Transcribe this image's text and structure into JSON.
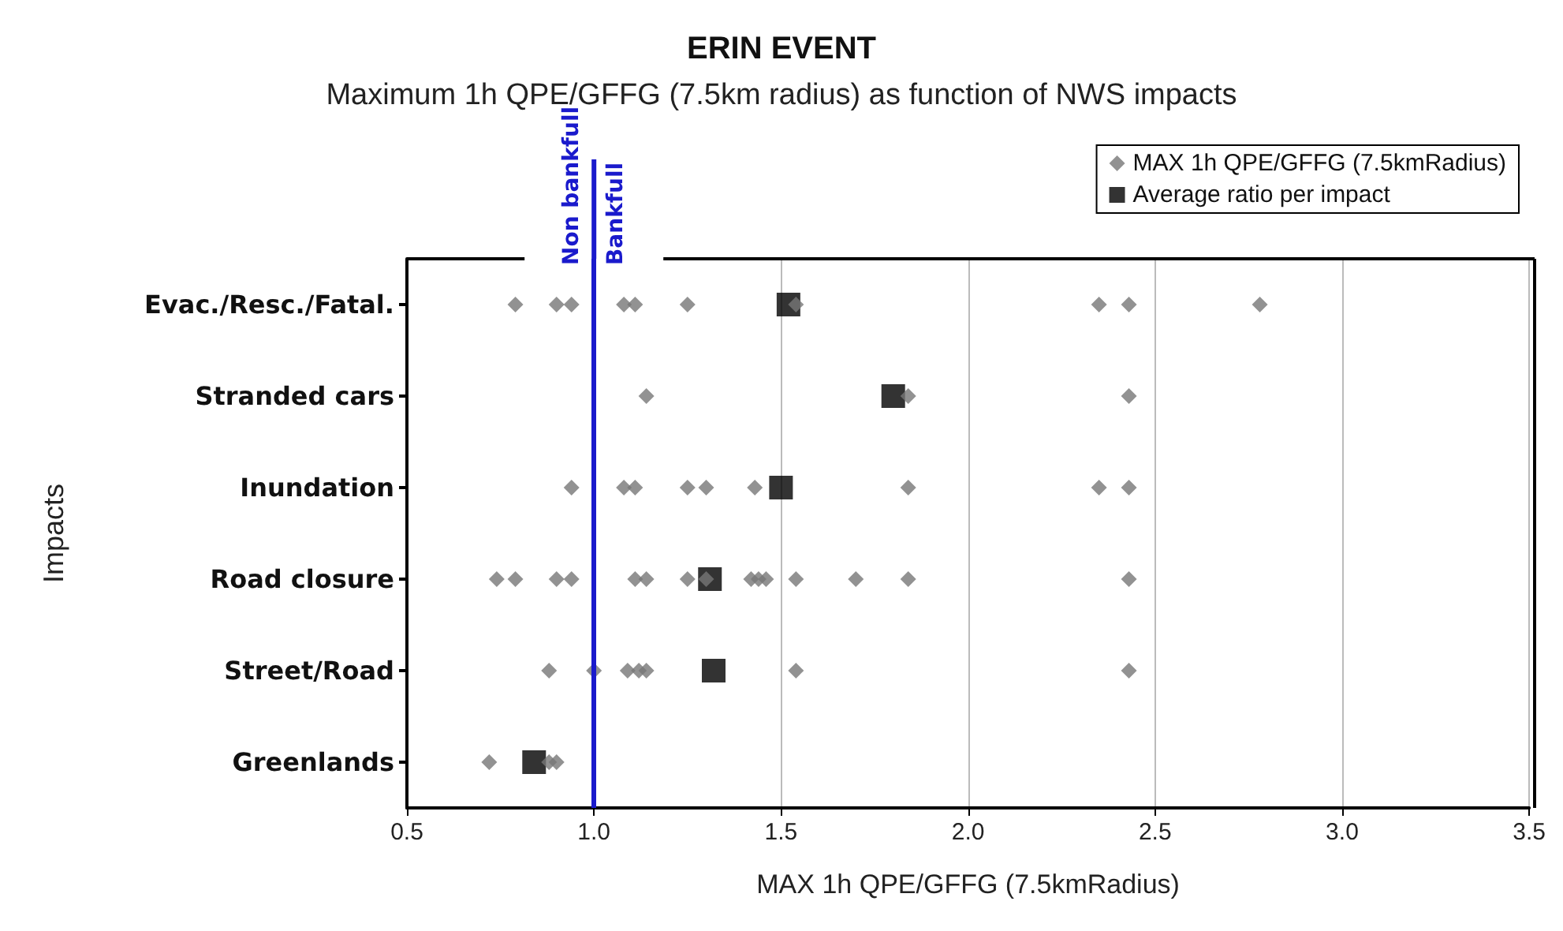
{
  "chart_data": {
    "type": "scatter",
    "orientation": "horizontal",
    "title": "ERIN EVENT",
    "subtitle": "Maximum 1h QPE/GFFG (7.5km radius) as function of NWS impacts",
    "xlabel": "MAX 1h QPE/GFFG (7.5kmRadius)",
    "ylabel": "Impacts",
    "categories": [
      "Evac./Resc./Fatal.",
      "Stranded cars",
      "Inundation",
      "Road closure",
      "Street/Road",
      "Greenlands"
    ],
    "series": [
      {
        "name": "MAX 1h QPE/GFFG (7.5kmRadius)",
        "color": "#777777",
        "marker": "diamond",
        "x": [
          "Evac./Resc./Fatal.",
          "Evac./Resc./Fatal.",
          "Evac./Resc./Fatal.",
          "Evac./Resc./Fatal.",
          "Evac./Resc./Fatal.",
          "Evac./Resc./Fatal.",
          "Evac./Resc./Fatal.",
          "Evac./Resc./Fatal.",
          "Evac./Resc./Fatal.",
          "Evac./Resc./Fatal.",
          "Stranded cars",
          "Stranded cars",
          "Stranded cars",
          "Inundation",
          "Inundation",
          "Inundation",
          "Inundation",
          "Inundation",
          "Inundation",
          "Inundation",
          "Inundation",
          "Inundation",
          "Road closure",
          "Road closure",
          "Road closure",
          "Road closure",
          "Road closure",
          "Road closure",
          "Road closure",
          "Road closure",
          "Road closure",
          "Road closure",
          "Road closure",
          "Road closure",
          "Road closure",
          "Road closure",
          "Road closure",
          "Street/Road",
          "Street/Road",
          "Street/Road",
          "Street/Road",
          "Street/Road",
          "Street/Road",
          "Street/Road",
          "Greenlands",
          "Greenlands",
          "Greenlands"
        ],
        "values": [
          0.79,
          0.9,
          0.94,
          1.08,
          1.11,
          1.25,
          1.54,
          2.35,
          2.43,
          2.78,
          1.14,
          1.84,
          2.43,
          0.94,
          1.08,
          1.11,
          1.25,
          1.3,
          1.43,
          1.84,
          2.35,
          2.43,
          0.74,
          0.79,
          0.9,
          0.94,
          1.11,
          1.14,
          1.25,
          1.3,
          1.42,
          1.44,
          1.46,
          1.54,
          1.7,
          1.84,
          2.43,
          0.88,
          1.0,
          1.09,
          1.12,
          1.14,
          1.54,
          2.43,
          0.72,
          0.88,
          0.9
        ]
      },
      {
        "name": "Average ratio per impact",
        "color": "#000000",
        "marker": "square",
        "x": [
          "Evac./Resc./Fatal.",
          "Stranded cars",
          "Inundation",
          "Road closure",
          "Street/Road",
          "Greenlands"
        ],
        "values": [
          1.52,
          1.8,
          1.5,
          1.31,
          1.32,
          0.84
        ]
      }
    ],
    "xlim": [
      0.5,
      3.5
    ],
    "xticks": [
      {
        "value": 0.5,
        "label": "0.5"
      },
      {
        "value": 1,
        "label": "1.0"
      },
      {
        "value": 1.5,
        "label": "1.5"
      },
      {
        "value": 2,
        "label": "2.0"
      },
      {
        "value": 2.5,
        "label": "2.5"
      },
      {
        "value": 3,
        "label": "3.0"
      },
      {
        "value": 3.5,
        "label": "3.5"
      }
    ],
    "grid": "x",
    "legend": "top right",
    "ref_lines": [
      {
        "axis": "x",
        "value": 1,
        "color": "#1a1acc"
      }
    ],
    "annotations": [
      "Non bankfull",
      "Bankfull"
    ]
  }
}
